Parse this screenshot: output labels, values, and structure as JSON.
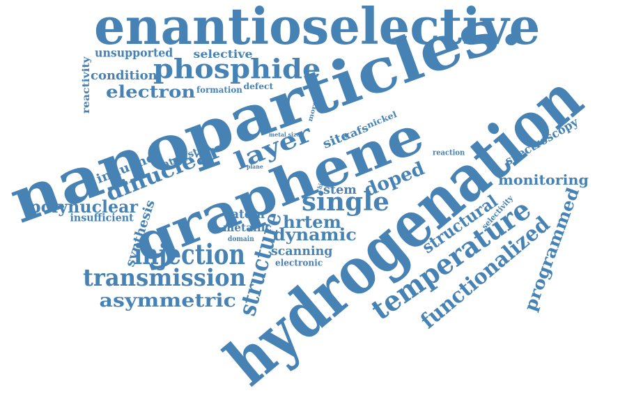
{
  "color": "#4682b4",
  "words": [
    {
      "id": "enantioselective",
      "text": "enantioselective"
    },
    {
      "id": "nanoparticles",
      "text": "nanoparticles."
    },
    {
      "id": "hydrogenation",
      "text": "hydrogenation"
    },
    {
      "id": "graphene",
      "text": "graphene"
    },
    {
      "id": "phosphide",
      "text": "phosphide"
    },
    {
      "id": "unsupported",
      "text": "unsupported"
    },
    {
      "id": "selective",
      "text": "selective"
    },
    {
      "id": "condition",
      "text": "condition"
    },
    {
      "id": "electron",
      "text": "electron"
    },
    {
      "id": "formation",
      "text": "formation"
    },
    {
      "id": "defect",
      "text": "defect"
    },
    {
      "id": "reactivity",
      "text": "reactivity"
    },
    {
      "id": "more",
      "text": "more"
    },
    {
      "id": "nickel",
      "text": "nickel"
    },
    {
      "id": "xafs",
      "text": "xafs"
    },
    {
      "id": "metal-size",
      "text": "metal size"
    },
    {
      "id": "site",
      "text": "site"
    },
    {
      "id": "layer",
      "text": "layer"
    },
    {
      "id": "catalyst",
      "text": "catalyst"
    },
    {
      "id": "influence",
      "text": "influence"
    },
    {
      "id": "plane",
      "text": "plane"
    },
    {
      "id": "dinuclear",
      "text": "dinuclear"
    },
    {
      "id": "reaction",
      "text": "reaction"
    },
    {
      "id": "spectroscopy",
      "text": "spectroscopy"
    },
    {
      "id": "monitoring",
      "text": "monitoring"
    },
    {
      "id": "doped",
      "text": "doped"
    },
    {
      "id": "stem",
      "text": "stem"
    },
    {
      "id": "chiral",
      "text": "chiral"
    },
    {
      "id": "single",
      "text": "single"
    },
    {
      "id": "polynuclear",
      "text": "polynuclear"
    },
    {
      "id": "insufficient",
      "text": "insufficient"
    },
    {
      "id": "synthesis",
      "text": "synthesis"
    },
    {
      "id": "atom",
      "text": "atom"
    },
    {
      "id": "metallic",
      "text": "metallic"
    },
    {
      "id": "domain",
      "text": "domain"
    },
    {
      "id": "hrtem",
      "text": "hrtem"
    },
    {
      "id": "dynamic",
      "text": "dynamic"
    },
    {
      "id": "structural",
      "text": "structural"
    },
    {
      "id": "selectivity",
      "text": "selectivity"
    },
    {
      "id": "programmed",
      "text": "programmed"
    },
    {
      "id": "injection",
      "text": "injection"
    },
    {
      "id": "scanning",
      "text": "scanning"
    },
    {
      "id": "electronic",
      "text": "electronic"
    },
    {
      "id": "structure",
      "text": "structure"
    },
    {
      "id": "temperature",
      "text": "temperature"
    },
    {
      "id": "functionalized",
      "text": "functionalized"
    },
    {
      "id": "transmission",
      "text": "transmission"
    },
    {
      "id": "asymmetric",
      "text": "asymmetric"
    }
  ]
}
